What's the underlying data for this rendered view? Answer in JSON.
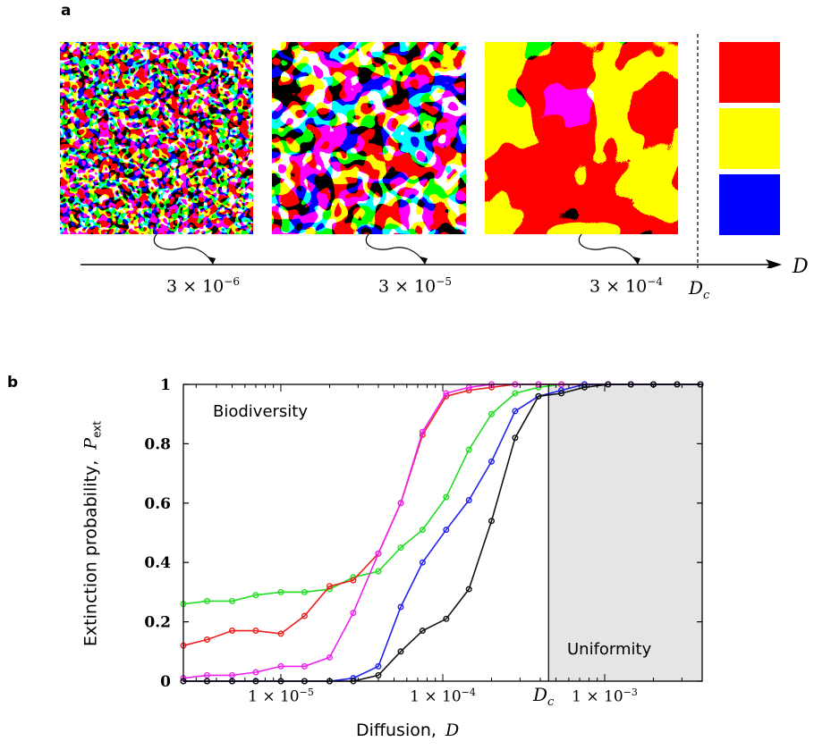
{
  "panel_a": {
    "label": "a",
    "snapshots": [
      {
        "D_text": "3 × 10",
        "D_exp": "−6"
      },
      {
        "D_text": "3 × 10",
        "D_exp": "−5"
      },
      {
        "D_text": "3 × 10",
        "D_exp": "−4"
      }
    ],
    "critical_label": "D",
    "critical_sub": "c",
    "axis_label": "D",
    "species_colors": [
      "#ff0000",
      "#ffff00",
      "#0000ff"
    ]
  },
  "panel_b": {
    "label": "b",
    "ylabel_main": "Extinction probability,",
    "ylabel_sym": "P",
    "ylabel_sub": "ext",
    "xlabel_main": "Diffusion,",
    "xlabel_sym": "D",
    "region_left": "Biodiversity",
    "region_right": "Uniformity",
    "dc_label": "D",
    "dc_sub": "c",
    "xtick_labels": [
      {
        "text": "1 × 10",
        "exp": "−5",
        "value": 1e-05
      },
      {
        "text": "1 × 10",
        "exp": "−4",
        "value": 0.0001
      },
      {
        "text": "1 × 10",
        "exp": "−3",
        "value": 0.001
      }
    ]
  },
  "chart_data": {
    "type": "line",
    "x_scale": "log",
    "xlim": [
      2.5e-06,
      0.004
    ],
    "ylim": [
      0,
      1
    ],
    "yticks": [
      0,
      0.2,
      0.4,
      0.6,
      0.8,
      1
    ],
    "ytick_labels": [
      "0",
      "0.2",
      "0.4",
      "0.6",
      "0.8",
      "1"
    ],
    "Dc": 0.00045,
    "x": [
      2.5e-06,
      3.5e-06,
      5e-06,
      7e-06,
      1e-05,
      1.4e-05,
      2e-05,
      2.8e-05,
      4e-05,
      5.5e-05,
      7.5e-05,
      0.000105,
      0.000145,
      0.0002,
      0.00028,
      0.00039,
      0.00054,
      0.00075,
      0.00105,
      0.00145,
      0.002,
      0.0028,
      0.0039
    ],
    "series": [
      {
        "color": "#22dd22",
        "values": [
          0.26,
          0.27,
          0.27,
          0.29,
          0.3,
          0.3,
          0.31,
          0.35,
          0.37,
          0.45,
          0.51,
          0.62,
          0.78,
          0.9,
          0.97,
          0.99,
          1,
          1,
          1,
          1,
          1,
          1,
          1
        ]
      },
      {
        "color": "#ee2020",
        "values": [
          0.12,
          0.14,
          0.17,
          0.17,
          0.16,
          0.22,
          0.32,
          0.34,
          0.43,
          0.6,
          0.83,
          0.96,
          0.98,
          0.99,
          1,
          1,
          1,
          1,
          1,
          1,
          1,
          1,
          1
        ]
      },
      {
        "color": "#ee22ee",
        "values": [
          0.01,
          0.02,
          0.02,
          0.03,
          0.05,
          0.05,
          0.08,
          0.23,
          0.43,
          0.6,
          0.84,
          0.97,
          0.99,
          1,
          1,
          1,
          1,
          1,
          1,
          1,
          1,
          1,
          1
        ]
      },
      {
        "color": "#2222ee",
        "values": [
          0,
          0,
          0,
          0,
          0,
          0,
          0,
          0.01,
          0.05,
          0.25,
          0.4,
          0.51,
          0.61,
          0.74,
          0.91,
          0.96,
          0.98,
          1,
          1,
          1,
          1,
          1,
          1
        ]
      },
      {
        "color": "#111111",
        "values": [
          0,
          0,
          0,
          0,
          0,
          0,
          0,
          0,
          0.02,
          0.1,
          0.17,
          0.21,
          0.31,
          0.54,
          0.82,
          0.96,
          0.97,
          0.99,
          1,
          1,
          1,
          1,
          1
        ]
      }
    ]
  }
}
